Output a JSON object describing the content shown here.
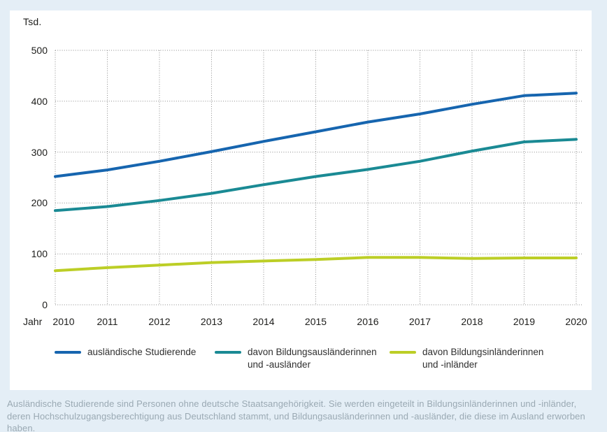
{
  "page": {
    "background": "#e4eef6",
    "panel_bg": "#ffffff"
  },
  "chart_data": {
    "type": "line",
    "title": "",
    "unit_label": "Tsd.",
    "x_axis_label": "Jahr",
    "categories": [
      "2010",
      "2011",
      "2012",
      "2013",
      "2014",
      "2015",
      "2016",
      "2017",
      "2018",
      "2019",
      "2020"
    ],
    "yticks": [
      0,
      100,
      200,
      300,
      400,
      500
    ],
    "ylim": [
      0,
      500
    ],
    "grid": "dotted-horizontal-and-vertical",
    "legend_position": "bottom",
    "series": [
      {
        "name": "ausländische Studierende",
        "color": "#1665af",
        "values": [
          252,
          265,
          282,
          301,
          321,
          340,
          359,
          375,
          394,
          411,
          416
        ]
      },
      {
        "name": "davon Bildungsausländerinnen und -ausländer",
        "color": "#1a8a94",
        "values": [
          185,
          193,
          205,
          219,
          236,
          252,
          266,
          282,
          302,
          320,
          325
        ]
      },
      {
        "name": "davon Bildungsinländerinnen und -inländer",
        "color": "#bcce26",
        "values": [
          67,
          73,
          78,
          83,
          86,
          89,
          93,
          93,
          91,
          92,
          92
        ]
      }
    ]
  },
  "legend": {
    "items": [
      {
        "label_line1": "ausländische Studierende",
        "label_line2": ""
      },
      {
        "label_line1": "davon Bildungsausländerinnen",
        "label_line2": "und -ausländer"
      },
      {
        "label_line1": "davon Bildungsinländerinnen",
        "label_line2": "und -inländer"
      }
    ]
  },
  "footer": {
    "text": "Ausländische Studierende sind Personen ohne deutsche Staatsangehörigkeit. Sie werden eingeteilt in Bildungsinländerinnen und -inländer, deren Hochschulzugangsberechtigung aus Deutschland stammt, und Bildungsausländerinnen und -ausländer, die diese im Ausland erworben haben."
  },
  "colors": {
    "gridline": "#8c8c8c",
    "axis_text": "#1d1d1b",
    "legend_text": "#2f2f2f",
    "footer_text": "#9aa9b3"
  }
}
